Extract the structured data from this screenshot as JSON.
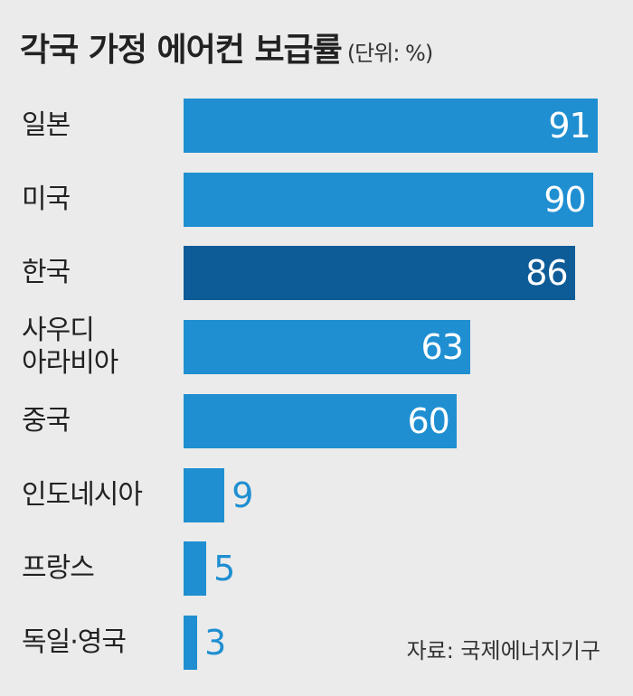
{
  "chart_data": {
    "type": "bar",
    "orientation": "horizontal",
    "title": "각국 가정 에어컨 보급률",
    "unit": "(단위: %)",
    "categories": [
      "일본",
      "미국",
      "한국",
      "사우디\n아라비아",
      "중국",
      "인도네시아",
      "프랑스",
      "독일·영국"
    ],
    "values": [
      91,
      90,
      86,
      63,
      60,
      9,
      5,
      3
    ],
    "colors": [
      "#1f8fd1",
      "#1f8fd1",
      "#0d5b97",
      "#1f8fd1",
      "#1f8fd1",
      "#1f8fd1",
      "#1f8fd1",
      "#1f8fd1"
    ],
    "source": "자료: 국제에너지기구"
  }
}
